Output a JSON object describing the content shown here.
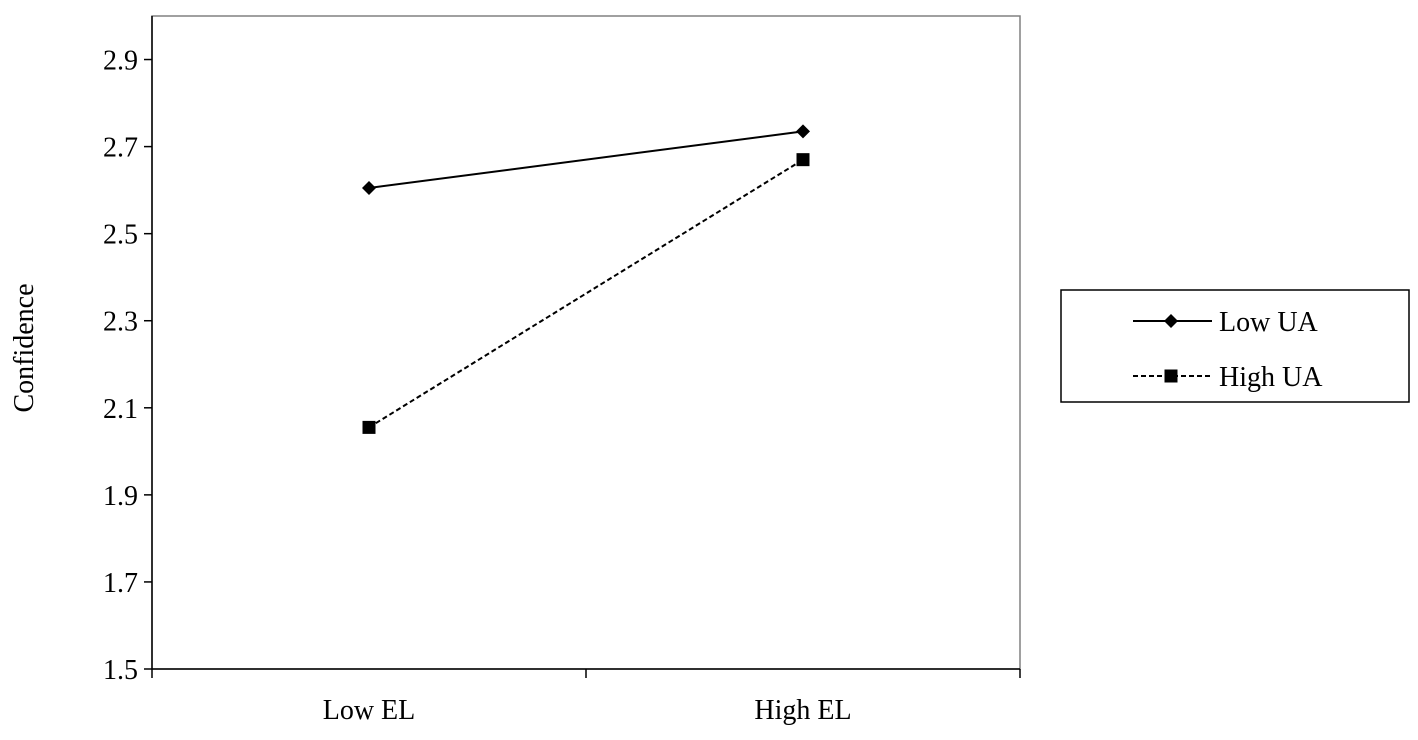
{
  "chart_data": {
    "type": "line",
    "title": "",
    "xlabel": "",
    "ylabel": "Confidence",
    "categories": [
      "Low EL",
      "High EL"
    ],
    "ylim": [
      1.5,
      3.0
    ],
    "yticks": [
      "1.5",
      "1.7",
      "1.9",
      "2.1",
      "2.3",
      "2.5",
      "2.7",
      "2.9"
    ],
    "grid": false,
    "legend_position": "right",
    "series": [
      {
        "name": "Low UA",
        "values": [
          2.605,
          2.735
        ],
        "marker": "diamond",
        "line_style": "solid",
        "color": "#000000"
      },
      {
        "name": "High UA",
        "values": [
          2.055,
          2.67
        ],
        "marker": "square",
        "line_style": "dashed",
        "color": "#000000"
      }
    ]
  }
}
